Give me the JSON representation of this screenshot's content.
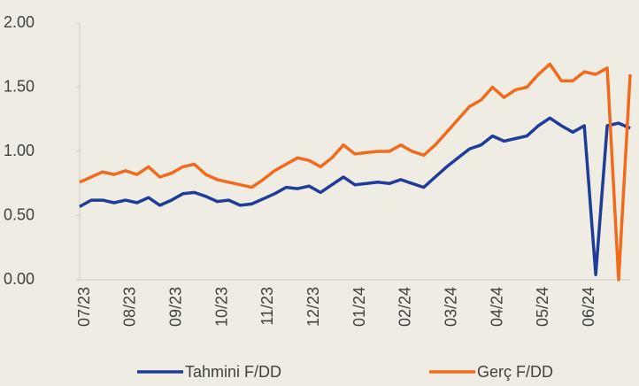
{
  "chart_data": {
    "type": "line",
    "categories": [
      "07/23",
      null,
      null,
      null,
      "08/23",
      null,
      null,
      null,
      "09/23",
      null,
      null,
      null,
      "10/23",
      null,
      null,
      null,
      "11/23",
      null,
      null,
      null,
      "12/23",
      null,
      null,
      null,
      "01/24",
      null,
      null,
      null,
      "02/24",
      null,
      null,
      null,
      "03/24",
      null,
      null,
      null,
      "04/24",
      null,
      null,
      null,
      "05/24",
      null,
      null,
      null,
      "06/24",
      null,
      null,
      null,
      null
    ],
    "series": [
      {
        "name": "Tahmini F/DD",
        "color": "#1f3c98",
        "values": [
          0.57,
          0.62,
          0.62,
          0.6,
          0.62,
          0.6,
          0.64,
          0.58,
          0.62,
          0.67,
          0.68,
          0.65,
          0.61,
          0.62,
          0.58,
          0.59,
          0.63,
          0.67,
          0.72,
          0.71,
          0.73,
          0.68,
          0.74,
          0.8,
          0.74,
          0.75,
          0.76,
          0.75,
          0.78,
          0.75,
          0.72,
          0.8,
          0.88,
          0.95,
          1.02,
          1.05,
          1.12,
          1.08,
          1.1,
          1.12,
          1.2,
          1.26,
          1.2,
          1.15,
          1.2,
          0.04,
          1.2,
          1.22,
          1.18
        ]
      },
      {
        "name": "Gerç F/DD",
        "color": "#f26a1b",
        "values": [
          0.76,
          0.8,
          0.84,
          0.82,
          0.85,
          0.82,
          0.88,
          0.8,
          0.83,
          0.88,
          0.9,
          0.82,
          0.78,
          0.76,
          0.74,
          0.72,
          0.78,
          0.85,
          0.9,
          0.95,
          0.93,
          0.88,
          0.95,
          1.05,
          0.98,
          0.99,
          1.0,
          1.0,
          1.05,
          1.0,
          0.97,
          1.05,
          1.15,
          1.25,
          1.35,
          1.4,
          1.5,
          1.42,
          1.48,
          1.5,
          1.6,
          1.68,
          1.55,
          1.55,
          1.62,
          1.6,
          1.65,
          0.0,
          1.6
        ]
      }
    ],
    "ylim": [
      0,
      2
    ],
    "yticks": [
      {
        "value": 0,
        "label": "0.00"
      },
      {
        "value": 0.5,
        "label": "0.50"
      },
      {
        "value": 1,
        "label": "1.00"
      },
      {
        "value": 1.5,
        "label": "1.50"
      },
      {
        "value": 2,
        "label": "2.00"
      }
    ],
    "legend": "bottom"
  }
}
